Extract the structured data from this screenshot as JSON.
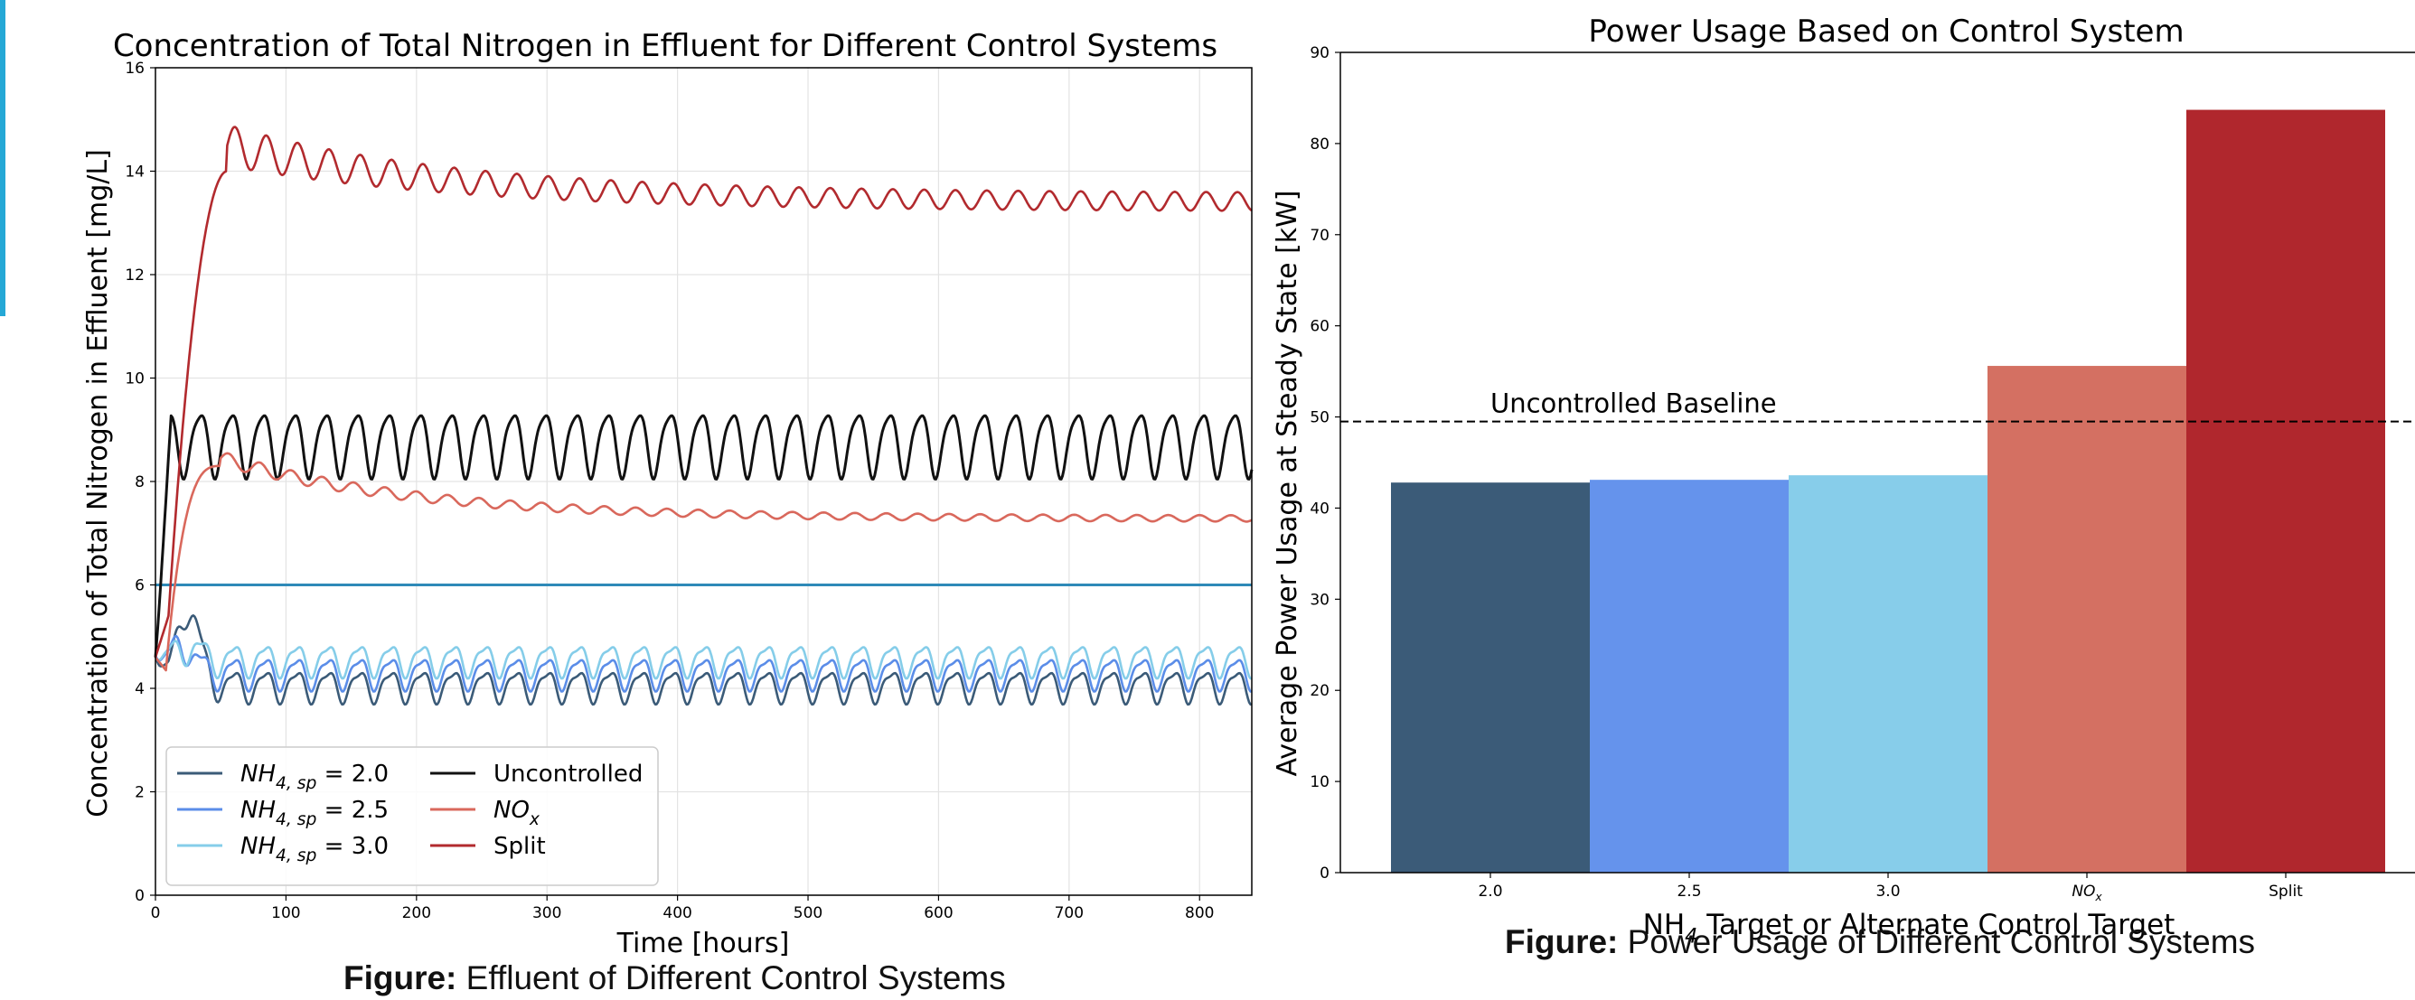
{
  "figure_captions": {
    "left": {
      "prefix": "Figure:",
      "text": "Effluent of Different Control Systems"
    },
    "right": {
      "prefix": "Figure:",
      "text": "Power Usage of Different Control Systems"
    }
  },
  "colors": {
    "nh4_20": "#3b5b78",
    "nh4_25": "#5b8de8",
    "nh4_30": "#85cde9",
    "uncontrolled": "#111111",
    "nox": "#d9685c",
    "split": "#b22a2e",
    "limit_line": "#2f8ab8",
    "accent": "#25a8d6"
  },
  "chart_data": [
    {
      "type": "line",
      "title": "Concentration of Total Nitrogen in Effluent for Different Control Systems",
      "xlabel": "Time [hours]",
      "ylabel": "Concentration of Total Nitrogen in Effluent [mg/L]",
      "xlim": [
        0,
        840
      ],
      "ylim": [
        0,
        16
      ],
      "x_ticks": [
        0,
        100,
        200,
        300,
        400,
        500,
        600,
        700,
        800
      ],
      "y_ticks": [
        0,
        2,
        4,
        6,
        8,
        10,
        12,
        14,
        16
      ],
      "grid": true,
      "legend_position": "bottom-left",
      "reference_line": {
        "y": 6.0
      },
      "series": [
        {
          "key": "nh4_20",
          "name": "NH4,sp = 2.0",
          "legend": {
            "base": "NH",
            "sub": "4, sp",
            "rest": " = 2.0"
          },
          "start": 4.6,
          "peak": {
            "x": 25,
            "y": 5.75
          },
          "steady_mean": 4.05,
          "amplitude": 0.28,
          "period_hours": 24
        },
        {
          "key": "nh4_25",
          "name": "NH4,sp = 2.5",
          "legend": {
            "base": "NH",
            "sub": "4, sp",
            "rest": " = 2.5"
          },
          "start": 4.6,
          "peak": {
            "x": 20,
            "y": 5.05
          },
          "steady_mean": 4.3,
          "amplitude": 0.28,
          "period_hours": 24
        },
        {
          "key": "nh4_30",
          "name": "NH4,sp = 3.0",
          "legend": {
            "base": "NH",
            "sub": "4, sp",
            "rest": " = 3.0"
          },
          "start": 4.6,
          "peak": {
            "x": 25,
            "y": 5.0
          },
          "steady_mean": 4.55,
          "amplitude": 0.28,
          "period_hours": 24
        },
        {
          "key": "uncontrolled",
          "name": "Uncontrolled",
          "legend": {
            "base": "Uncontrolled",
            "sub": "",
            "rest": ""
          },
          "start": 4.6,
          "steady_mean": 8.75,
          "amplitude": 0.6,
          "period_hours": 24
        },
        {
          "key": "nox",
          "name": "NOx",
          "legend": {
            "base": "NO",
            "sub": "x",
            "rest": "",
            "italic": true
          },
          "start": 4.6,
          "peak": {
            "x": 55,
            "y": 8.45
          },
          "steady_mean": 7.28,
          "amplitude": 0.04,
          "period_hours": 24
        },
        {
          "key": "split",
          "name": "Split",
          "legend": {
            "base": "Split",
            "sub": "",
            "rest": ""
          },
          "start": 4.6,
          "peak": {
            "x": 80,
            "y": 14.5
          },
          "steady_mean": 13.4,
          "amplitude": 0.18,
          "period_hours": 24
        }
      ]
    },
    {
      "type": "bar",
      "title": "Power Usage Based on Control System",
      "xlabel": {
        "base": "NH",
        "sub": "4",
        "rest": " Target or Alternate Control Target"
      },
      "ylabel": "Average Power Usage at Steady State [kW]",
      "ylim": [
        0,
        90
      ],
      "y_ticks": [
        0,
        10,
        20,
        30,
        40,
        50,
        60,
        70,
        80,
        90
      ],
      "categories": [
        "2.0",
        "2.5",
        "3.0",
        "NOx",
        "Split"
      ],
      "category_labels": [
        {
          "base": "2.0",
          "sub": ""
        },
        {
          "base": "2.5",
          "sub": ""
        },
        {
          "base": "3.0",
          "sub": ""
        },
        {
          "base": "NO",
          "sub": "x",
          "italic": true
        },
        {
          "base": "Split",
          "sub": ""
        }
      ],
      "values": [
        42.8,
        43.1,
        43.6,
        55.6,
        83.7
      ],
      "bar_colors": [
        "#3b5b78",
        "#6593ec",
        "#87cdea",
        "#d47062",
        "#b0272d"
      ],
      "baseline": {
        "y": 49.5,
        "label": "Uncontrolled Baseline"
      }
    }
  ]
}
